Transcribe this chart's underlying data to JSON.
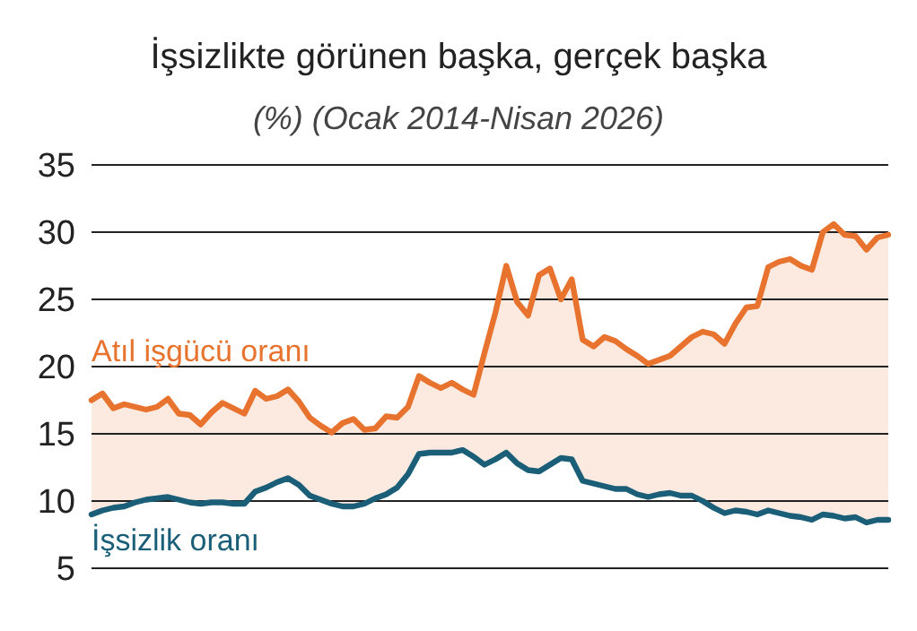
{
  "chart_data": {
    "type": "line",
    "title": "İşsizlikte görünen başka, gerçek başka",
    "subtitle": "(%) (Ocak 2014-Nisan 2026)",
    "categories": [
      null,
      null,
      null,
      null,
      null,
      null,
      null,
      null,
      null,
      null,
      null,
      null,
      null,
      null,
      null,
      null,
      null,
      null,
      null,
      null,
      null,
      null,
      null,
      null,
      null,
      null,
      null,
      null,
      null,
      null,
      null,
      null,
      null,
      null,
      null,
      null,
      null,
      null,
      null,
      null,
      null,
      null,
      null,
      null,
      null,
      null,
      null,
      null,
      null,
      null,
      null,
      null,
      null,
      null,
      null,
      null,
      null,
      null,
      null,
      null,
      null,
      null,
      null,
      null,
      null,
      null,
      null,
      null,
      null,
      null,
      null,
      null,
      null,
      null
    ],
    "series": [
      {
        "name": "Atıl işgücü oranı",
        "color": "#e8732e",
        "values": [
          17.5,
          18,
          16.9,
          17.2,
          17,
          16.8,
          17,
          17.6,
          16.5,
          16.4,
          15.7,
          16.6,
          17.3,
          16.9,
          16.5,
          18.2,
          17.6,
          17.8,
          18.3,
          17.4,
          16.2,
          15.6,
          15.1,
          15.8,
          16.1,
          15.3,
          15.4,
          16.3,
          16.2,
          17,
          19.3,
          18.8,
          18.4,
          18.8,
          18.3,
          17.9,
          21,
          24,
          27.5,
          24.8,
          23.8,
          26.8,
          27.3,
          25,
          26.5,
          22,
          21.5,
          22.2,
          21.9,
          21.3,
          20.8,
          20.2,
          20.5,
          20.8,
          21.5,
          22.2,
          22.6,
          22.4,
          21.7,
          23.2,
          24.4,
          24.5,
          27.4,
          27.8,
          28,
          27.5,
          27.2,
          30,
          30.6,
          29.8,
          29.7,
          28.7,
          29.6,
          29.8
        ],
        "lower": [
          9,
          9.3,
          9.5,
          9.6,
          9.9,
          10.1,
          10.2,
          10.3,
          10.1,
          9.9,
          9.8,
          9.9,
          9.9,
          9.8,
          9.8,
          10.7,
          11,
          11.4,
          11.7,
          11.2,
          10.4,
          10.1,
          9.8,
          9.6,
          9.6,
          9.8,
          10.2,
          10.5,
          11,
          12,
          13.5,
          13.6,
          13.6,
          13.6,
          13.8,
          13.3,
          12.7,
          13.1,
          13.6,
          12.8,
          12.3,
          12.2,
          12.7,
          13.2,
          13.1,
          11.5,
          11.3,
          11.1,
          10.9,
          10.9,
          10.5,
          10.3,
          10.5,
          10.6,
          10.4,
          10.4,
          10,
          9.5,
          9.1,
          9.3,
          9.2,
          9,
          9.3,
          9.1,
          8.9,
          8.8,
          8.6,
          9,
          8.9,
          8.7,
          8.8,
          8.4,
          8.6,
          8.6
        ],
        "upper": [
          17.5,
          18,
          16.9,
          17.2,
          17,
          16.8,
          17,
          17.6,
          16.5,
          16.4,
          15.7,
          16.6,
          17.3,
          16.9,
          16.5,
          18.2,
          17.6,
          17.8,
          18.3,
          17.4,
          16.2,
          15.6,
          15.1,
          15.8,
          16.1,
          15.3,
          15.4,
          16.3,
          16.2,
          17,
          19.3,
          18.8,
          18.4,
          18.8,
          18.3,
          17.9,
          21,
          24,
          27.5,
          24.8,
          23.8,
          26.8,
          27.3,
          25,
          26.5,
          22,
          21.5,
          22.2,
          21.9,
          21.3,
          20.8,
          20.2,
          20.5,
          20.8,
          21.5,
          22.2,
          22.6,
          22.4,
          21.7,
          23.2,
          24.4,
          24.5,
          27.4,
          27.8,
          28,
          27.5,
          27.2,
          30,
          30.6,
          29.8,
          29.7,
          28.7,
          29.6,
          29.8
        ]
      },
      {
        "name": "İşsizlik oranı",
        "color": "#1b5e78",
        "values": [
          9,
          9.3,
          9.5,
          9.6,
          9.9,
          10.1,
          10.2,
          10.3,
          10.1,
          9.9,
          9.8,
          9.9,
          9.9,
          9.8,
          9.8,
          10.7,
          11,
          11.4,
          11.7,
          11.2,
          10.4,
          10.1,
          9.8,
          9.6,
          9.6,
          9.8,
          10.2,
          10.5,
          11,
          12,
          13.5,
          13.6,
          13.6,
          13.6,
          13.8,
          13.3,
          12.7,
          13.1,
          13.6,
          12.8,
          12.3,
          12.2,
          12.7,
          13.2,
          13.1,
          11.5,
          11.3,
          11.1,
          10.9,
          10.9,
          10.5,
          10.3,
          10.5,
          10.6,
          10.4,
          10.4,
          10,
          9.5,
          9.1,
          9.3,
          9.2,
          9,
          9.3,
          9.1,
          8.9,
          8.8,
          8.6,
          9,
          8.9,
          8.7,
          8.8,
          8.4,
          8.6,
          8.6
        ]
      }
    ],
    "ylim": [
      5,
      35
    ],
    "yticks": [
      5,
      10,
      15,
      20,
      25,
      30,
      35
    ],
    "grid": "y",
    "tick_labels": "y",
    "legend": false
  }
}
